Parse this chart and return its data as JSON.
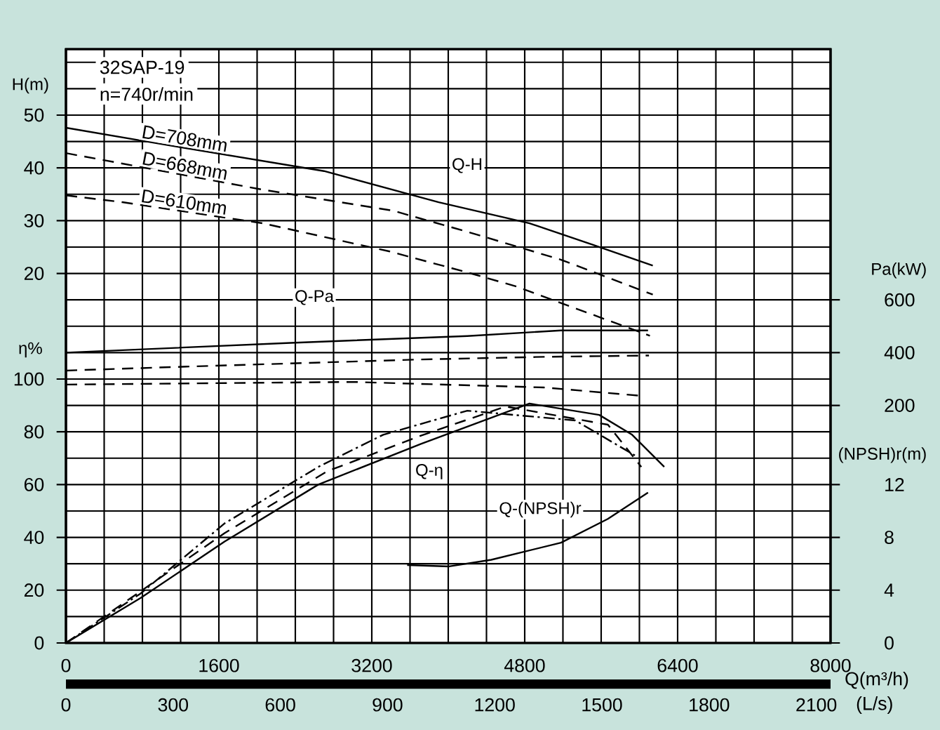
{
  "chart_data": [
    {
      "type": "line",
      "title": "32SAP-19",
      "subtitle": "n=740r/min",
      "xlim": [
        0,
        8000
      ],
      "xticks": [
        0,
        1600,
        3200,
        4800,
        6400,
        8000
      ],
      "tick_labels": "y",
      "ylabel": "H(m)",
      "ylim": [
        -50,
        62.5
      ],
      "yticks": [
        20,
        30,
        40,
        50
      ],
      "y2label": "Pa(kW)",
      "y2lim": [
        -700,
        1550
      ],
      "y2ticks": [
        200,
        400,
        600
      ],
      "annotations": [
        "Q-H",
        "Q-Pa"
      ],
      "series": [
        {
          "name": "D=708mm",
          "color": "#000000",
          "line_style": "solid",
          "x": [
            0,
            1200,
            2700,
            3900,
            4850,
            5500,
            6140
          ],
          "values": [
            47.6,
            43.9,
            39.4,
            33.5,
            29.5,
            25.5,
            21.5
          ]
        },
        {
          "name": "D=668mm",
          "color": "#000000",
          "line_style": "dashed",
          "x": [
            0,
            2050,
            3420,
            4200,
            5180,
            6140
          ],
          "values": [
            42.8,
            35.9,
            31.9,
            27.9,
            22.6,
            16.0
          ]
        },
        {
          "name": "D=610mm",
          "color": "#000000",
          "line_style": "dashed",
          "x": [
            0,
            590,
            2060,
            3380,
            4200,
            4700,
            6110
          ],
          "values": [
            34.8,
            33.5,
            29.5,
            24.2,
            20.2,
            17.6,
            8.2
          ]
        },
        {
          "axis": "y2",
          "color": "#000000",
          "line_style": "solid",
          "x": [
            0,
            2350,
            4200,
            5180,
            6090
          ],
          "values": [
            400,
            437,
            463,
            484,
            484
          ]
        },
        {
          "axis": "y2",
          "color": "#000000",
          "line_style": "dashed",
          "x": [
            0,
            1260,
            3700,
            5000,
            6100
          ],
          "values": [
            332,
            347,
            374,
            384,
            389
          ]
        },
        {
          "axis": "y2",
          "color": "#000000",
          "line_style": "dashed",
          "x": [
            0,
            3000,
            5000,
            6000
          ],
          "values": [
            279,
            289,
            268,
            237
          ]
        }
      ]
    },
    {
      "type": "line",
      "xlabel": "Q(m³/h)",
      "xlim": [
        0,
        8000
      ],
      "xticks": [
        0,
        1600,
        3200,
        4800,
        6400,
        8000
      ],
      "x2label": "(L/s)",
      "x2lim": [
        0,
        2140
      ],
      "x2ticks": [
        0,
        300,
        600,
        900,
        1200,
        1500,
        1800,
        2100
      ],
      "ylabel": "η%",
      "ylim": [
        0,
        225
      ],
      "yticks": [
        0,
        20,
        40,
        60,
        80,
        100
      ],
      "y2label": "(NPSH)r(m)",
      "y2lim": [
        0,
        45
      ],
      "y2ticks": [
        0,
        4,
        8,
        12
      ],
      "grid": true,
      "annotations": [
        "Q-η",
        "Q-(NPSH)r"
      ],
      "series": [
        {
          "color": "#000000",
          "line_style": "solid",
          "x": [
            0,
            780,
            1660,
            2640,
            3720,
            4850,
            5580,
            5920,
            6260
          ],
          "values": [
            0,
            17,
            38.4,
            60,
            75.5,
            90.7,
            86.4,
            79,
            66.7
          ]
        },
        {
          "color": "#000000",
          "line_style": "dashed",
          "x": [
            0,
            1660,
            2730,
            3720,
            4600,
            5670,
            6020
          ],
          "values": [
            0,
            41.6,
            65,
            78.6,
            89.6,
            82.7,
            66.7
          ]
        },
        {
          "color": "#000000",
          "line_style": "dotted",
          "x": [
            0,
            780,
            1660,
            2640,
            3320,
            4200,
            5330,
            5960
          ],
          "values": [
            0,
            18.7,
            45.3,
            66.7,
            78.9,
            88,
            84.3,
            70.9
          ]
        },
        {
          "axis": "y2",
          "color": "#000000",
          "line_style": "solid",
          "x": [
            3570,
            4010,
            4450,
            5180,
            5670,
            6090
          ],
          "values": [
            5.9,
            5.8,
            6.3,
            7.6,
            9.4,
            11.4
          ]
        }
      ]
    }
  ]
}
